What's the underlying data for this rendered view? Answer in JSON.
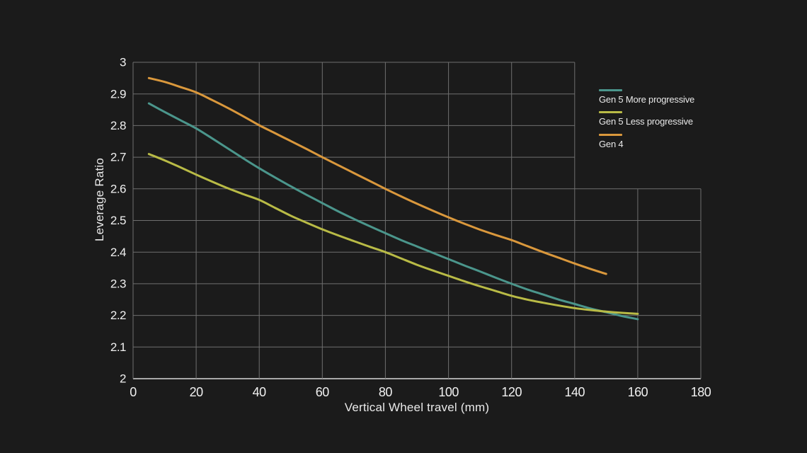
{
  "chart_data": {
    "type": "line",
    "title": "",
    "xlabel": "Vertical Wheel travel (mm)",
    "ylabel": "Leverage Ratio",
    "xlim": [
      0,
      180
    ],
    "ylim": [
      2,
      3
    ],
    "xticks": [
      0,
      20,
      40,
      60,
      80,
      100,
      120,
      140,
      160,
      180
    ],
    "yticks": [
      3,
      2.9,
      2.8,
      2.7,
      2.6,
      2.5,
      2.4,
      2.3,
      2.2,
      2.1,
      2
    ],
    "grid": true,
    "legend_position": "top-right-inside",
    "grid_notch": {
      "x": 140,
      "y": 2.6
    },
    "series": [
      {
        "name": "Gen 5 More progressive",
        "color": "#4b968c",
        "x": [
          5,
          10,
          15,
          20,
          25,
          30,
          35,
          40,
          45,
          50,
          55,
          60,
          65,
          70,
          75,
          80,
          85,
          90,
          95,
          100,
          105,
          110,
          115,
          120,
          125,
          130,
          135,
          140,
          145,
          150,
          155,
          160
        ],
        "y": [
          2.87,
          2.843,
          2.817,
          2.791,
          2.76,
          2.728,
          2.696,
          2.665,
          2.636,
          2.608,
          2.581,
          2.555,
          2.529,
          2.505,
          2.482,
          2.46,
          2.438,
          2.418,
          2.398,
          2.378,
          2.358,
          2.339,
          2.319,
          2.3,
          2.282,
          2.266,
          2.25,
          2.236,
          2.222,
          2.21,
          2.198,
          2.188
        ]
      },
      {
        "name": "Gen 5 Less progressive",
        "color": "#b9bb46",
        "x": [
          5,
          10,
          15,
          20,
          25,
          30,
          35,
          40,
          45,
          50,
          55,
          60,
          65,
          70,
          75,
          80,
          85,
          90,
          95,
          100,
          105,
          110,
          115,
          120,
          125,
          130,
          135,
          140,
          145,
          150,
          155,
          160
        ],
        "y": [
          2.71,
          2.69,
          2.668,
          2.645,
          2.623,
          2.602,
          2.583,
          2.565,
          2.54,
          2.515,
          2.493,
          2.472,
          2.453,
          2.435,
          2.417,
          2.4,
          2.38,
          2.36,
          2.342,
          2.325,
          2.308,
          2.292,
          2.277,
          2.262,
          2.25,
          2.24,
          2.231,
          2.223,
          2.217,
          2.212,
          2.208,
          2.205
        ]
      },
      {
        "name": "Gen 4",
        "color": "#da983c",
        "x": [
          5,
          10,
          15,
          20,
          25,
          30,
          35,
          40,
          45,
          50,
          55,
          60,
          65,
          70,
          75,
          80,
          85,
          90,
          95,
          100,
          105,
          110,
          115,
          120,
          125,
          130,
          135,
          140,
          145,
          150
        ],
        "y": [
          2.95,
          2.938,
          2.922,
          2.905,
          2.881,
          2.856,
          2.829,
          2.801,
          2.776,
          2.751,
          2.726,
          2.7,
          2.675,
          2.65,
          2.625,
          2.6,
          2.576,
          2.553,
          2.531,
          2.51,
          2.49,
          2.471,
          2.454,
          2.438,
          2.419,
          2.4,
          2.382,
          2.364,
          2.347,
          2.331
        ]
      }
    ]
  },
  "colors": {
    "background": "#1b1b1b",
    "grid": "#6f6f6f",
    "axis": "#a8a8a8",
    "text": "#e9e9e9"
  }
}
